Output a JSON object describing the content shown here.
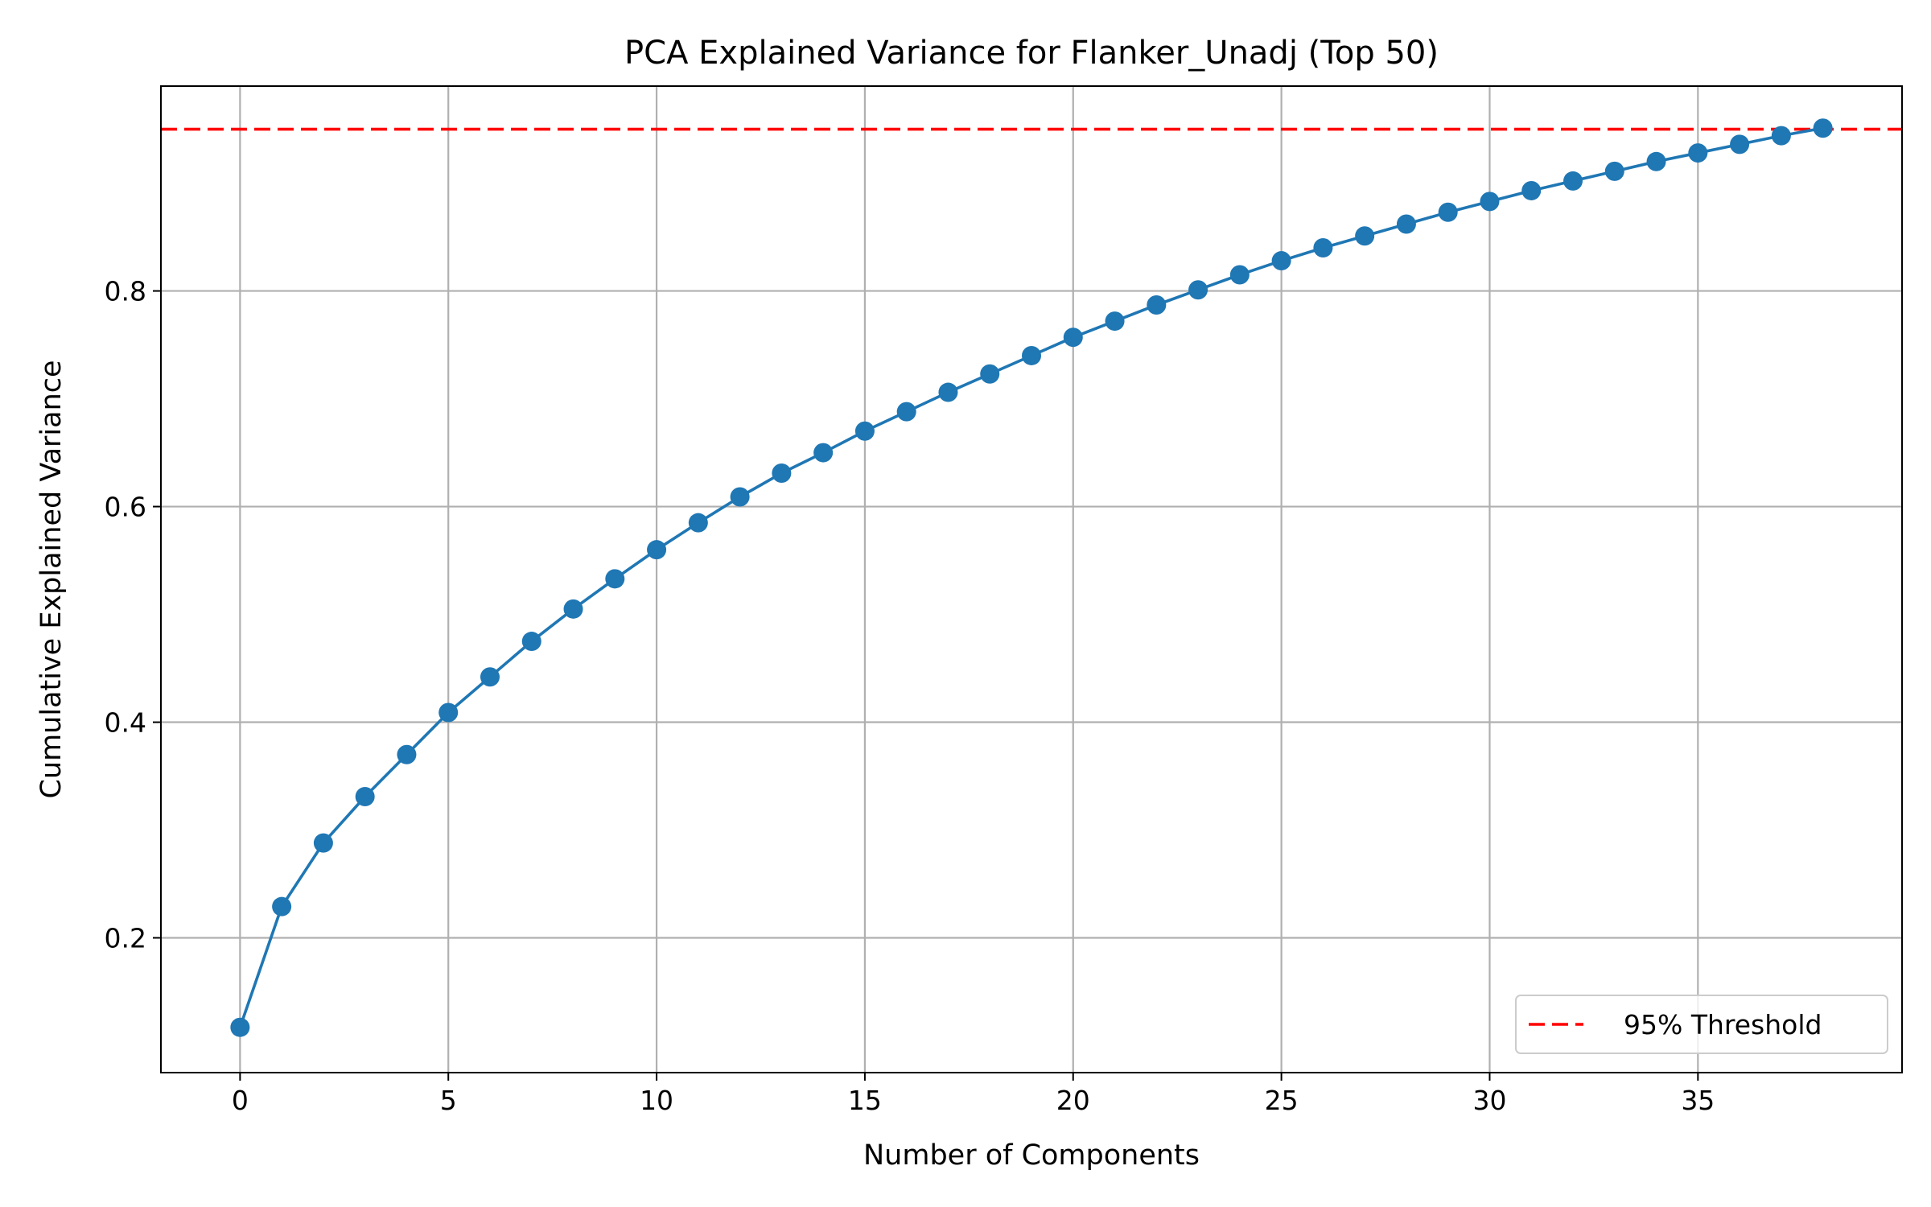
{
  "chart_data": {
    "type": "line",
    "title": "PCA Explained Variance for Flanker_Unadj (Top 50)",
    "xlabel": "Number of Components",
    "ylabel": "Cumulative Explained Variance",
    "xlim": [
      -1.9,
      39.9
    ],
    "ylim": [
      0.075,
      0.99
    ],
    "xticks": [
      0,
      5,
      10,
      15,
      20,
      25,
      30,
      35
    ],
    "xtick_labels": [
      "0",
      "5",
      "10",
      "15",
      "20",
      "25",
      "30",
      "35"
    ],
    "yticks": [
      0.2,
      0.4,
      0.6,
      0.8
    ],
    "ytick_labels": [
      "0.2",
      "0.4",
      "0.6",
      "0.8"
    ],
    "grid": true,
    "series": [
      {
        "color": "#1f77b4",
        "marker": "circle",
        "x": [
          0,
          1,
          2,
          3,
          4,
          5,
          6,
          7,
          8,
          9,
          10,
          11,
          12,
          13,
          14,
          15,
          16,
          17,
          18,
          19,
          20,
          21,
          22,
          23,
          24,
          25,
          26,
          27,
          28,
          29,
          30,
          31,
          32,
          33,
          34,
          35,
          36,
          37,
          38
        ],
        "values": [
          0.117,
          0.229,
          0.288,
          0.331,
          0.37,
          0.409,
          0.442,
          0.475,
          0.505,
          0.533,
          0.56,
          0.585,
          0.609,
          0.631,
          0.65,
          0.67,
          0.688,
          0.706,
          0.723,
          0.74,
          0.757,
          0.772,
          0.787,
          0.801,
          0.815,
          0.828,
          0.84,
          0.851,
          0.862,
          0.873,
          0.883,
          0.893,
          0.902,
          0.911,
          0.92,
          0.928,
          0.936,
          0.944,
          0.951
        ]
      }
    ],
    "reference_lines": [
      {
        "name": "95% Threshold",
        "orientation": "horizontal",
        "y": 0.95,
        "color": "#ff0000",
        "style": "dashed"
      }
    ],
    "legend": {
      "location": "lower-right",
      "entries": [
        "95% Threshold"
      ]
    }
  }
}
